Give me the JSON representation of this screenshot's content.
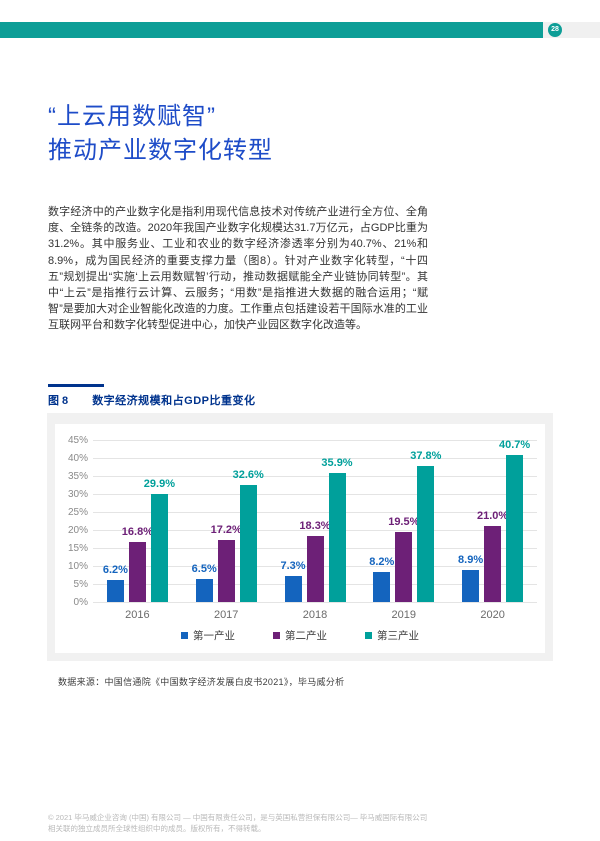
{
  "page": {
    "number": "28"
  },
  "title": {
    "line1": "“上云用数赋智”",
    "line2": "推动产业数字化转型",
    "color": "#1e4cc8"
  },
  "body": {
    "paragraph": "数字经济中的产业数字化是指利用现代信息技术对传统产业进行全方位、全角度、全链条的改造。2020年我国产业数字化规模达31.7万亿元，占GDP比重为31.2%。其中服务业、工业和农业的数字经济渗透率分别为40.7%、21%和8.9%，成为国民经济的重要支撑力量（图8）。针对产业数字化转型，“十四五”规划提出“实施‘上云用数赋智’行动，推动数据赋能全产业链协同转型”。其中“上云”是指推行云计算、云服务；“用数”是指推进大数据的融合运用；“赋智”是要加大对企业智能化改造的力度。工作重点包括建设若干国际水准的工业互联网平台和数字化转型促进中心，加快产业园区数字化改造等。"
  },
  "figure": {
    "label": "图 8",
    "caption": "数字经济规模和占GDP比重变化",
    "source": "数据来源：中国信通院《中国数字经济发展白皮书2021》，毕马威分析"
  },
  "chart_data": {
    "type": "bar",
    "title": "数字经济规模和占GDP比重变化",
    "categories": [
      "2016",
      "2017",
      "2018",
      "2019",
      "2020"
    ],
    "series": [
      {
        "name": "第一产业",
        "color": "#1464be",
        "values": [
          6.2,
          6.5,
          7.3,
          8.2,
          8.9
        ]
      },
      {
        "name": "第二产业",
        "color": "#6d2077",
        "values": [
          16.8,
          17.2,
          18.3,
          19.5,
          21.0
        ]
      },
      {
        "name": "第三产业",
        "color": "#00a09b",
        "values": [
          29.9,
          32.6,
          35.9,
          37.8,
          40.7
        ]
      }
    ],
    "ylim": [
      0,
      45
    ],
    "ytick_step": 5,
    "ytick_labels": [
      "45%",
      "40%",
      "35%",
      "30%",
      "25%",
      "20%",
      "15%",
      "10%",
      "5%",
      "0%"
    ],
    "grid": true,
    "legend_position": "bottom",
    "value_labels": "above bars, one decimal place with % sign, colored per series"
  },
  "footer": {
    "line1": "© 2021 毕马威企业咨询 (中国) 有限公司 — 中国有限责任公司，是与英国私营担保有限公司— 毕马威国际有限公司",
    "line2": "相关联的独立成员所全球性组织中的成员。版权所有，不得转载。"
  },
  "colors": {
    "accent_teal": "#0d9e97",
    "figure_navy": "#00338d",
    "card_grey": "#f1f1f1",
    "series_blue": "#1464be",
    "series_purple": "#6d2077",
    "series_teal": "#00a09b"
  }
}
